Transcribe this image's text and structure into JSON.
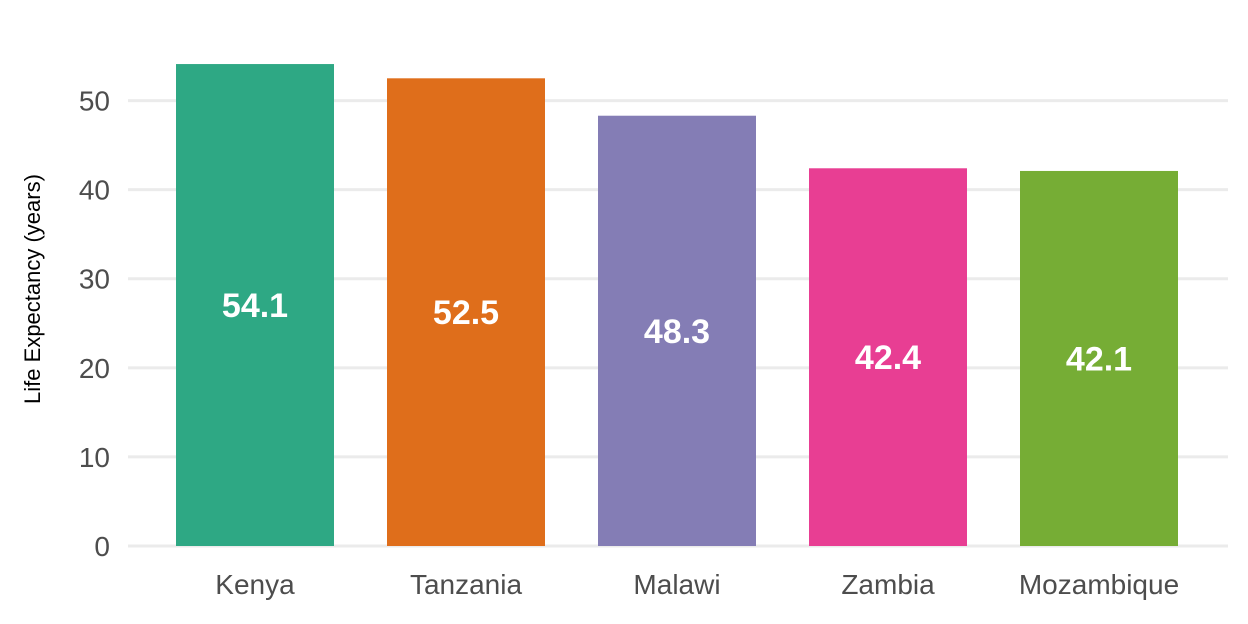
{
  "chart_data": {
    "type": "bar",
    "title": "",
    "xlabel": "",
    "ylabel": "Life Expectancy (years)",
    "categories": [
      "Kenya",
      "Tanzania",
      "Malawi",
      "Zambia",
      "Mozambique"
    ],
    "values": [
      54.1,
      52.5,
      48.3,
      42.4,
      42.1
    ],
    "value_labels": [
      "54.1",
      "52.5",
      "48.3",
      "42.4",
      "42.1"
    ],
    "colors": [
      "#2ea884",
      "#df6e1b",
      "#847db5",
      "#e83e93",
      "#76ad35"
    ],
    "ylim": [
      0,
      56.8
    ],
    "yticks": [
      0,
      10,
      20,
      30,
      40,
      50
    ],
    "grid": true,
    "legend": "none"
  }
}
